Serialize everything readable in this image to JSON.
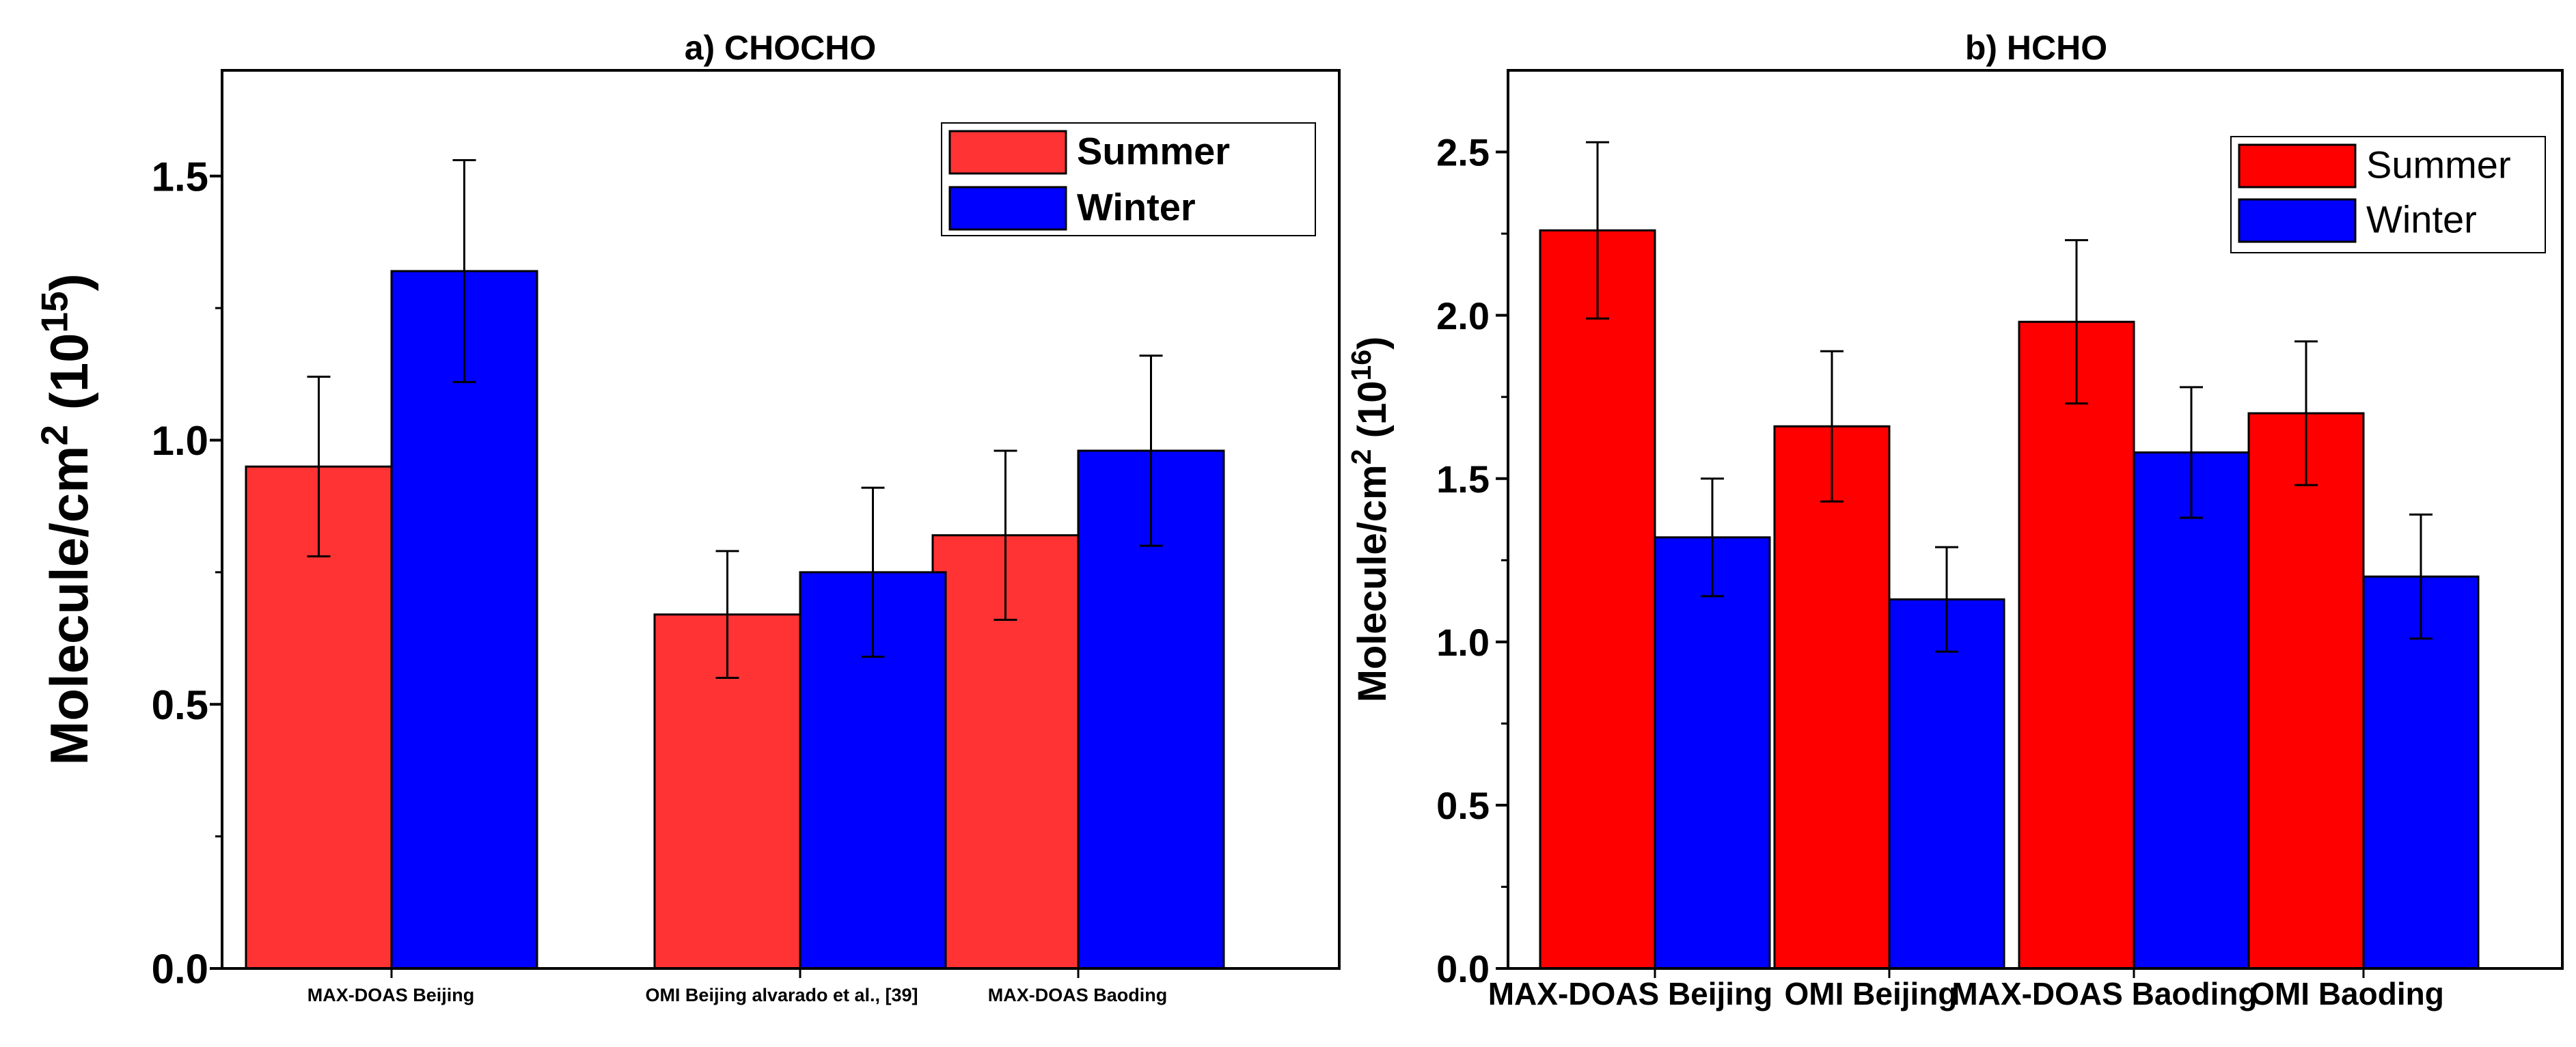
{
  "chart_data": [
    {
      "type": "bar",
      "title": "a) CHOCHO",
      "ylabel": "Molecule/cm",
      "ylabel_sup": "2",
      "ylabel_unit": " (10",
      "ylabel_unit_sup": "15",
      "ylabel_close": ")",
      "ylim": [
        0,
        1.7
      ],
      "yticks": [
        "0.0",
        "0.5",
        "1.0",
        "1.5"
      ],
      "categories": [
        "MAX-DOAS Beijing",
        "OMI Beijing alvarado et al., [39]",
        "MAX-DOAS Baoding"
      ],
      "series": [
        {
          "name": "Summer",
          "color": "#ff3333",
          "values": [
            0.95,
            0.67,
            0.82
          ],
          "errors": [
            0.17,
            0.12,
            0.16
          ]
        },
        {
          "name": "Winter",
          "color": "#0000ff",
          "values": [
            1.32,
            0.75,
            0.98
          ],
          "errors": [
            0.21,
            0.16,
            0.18
          ]
        }
      ],
      "legend_position": "top-right"
    },
    {
      "type": "bar",
      "title": "b) HCHO",
      "ylabel": "Molecule/cm",
      "ylabel_sup": "2",
      "ylabel_unit": " (10",
      "ylabel_unit_sup": "16",
      "ylabel_close": ")",
      "ylim": [
        0,
        2.75
      ],
      "yticks": [
        "0.0",
        "0.5",
        "1.0",
        "1.5",
        "2.0",
        "2.5"
      ],
      "categories": [
        "MAX-DOAS Beijing",
        "OMI Beijing",
        "MAX-DOAS Baoding",
        "OMI Baoding"
      ],
      "series": [
        {
          "name": "Summer",
          "color": "#ff0000",
          "values": [
            2.26,
            1.66,
            1.98,
            1.7
          ],
          "errors": [
            0.27,
            0.23,
            0.25,
            0.22
          ]
        },
        {
          "name": "Winter",
          "color": "#0000ff",
          "values": [
            1.32,
            1.13,
            1.58,
            1.2
          ],
          "errors": [
            0.18,
            0.16,
            0.2,
            0.19
          ]
        }
      ],
      "legend_position": "top-right"
    }
  ]
}
